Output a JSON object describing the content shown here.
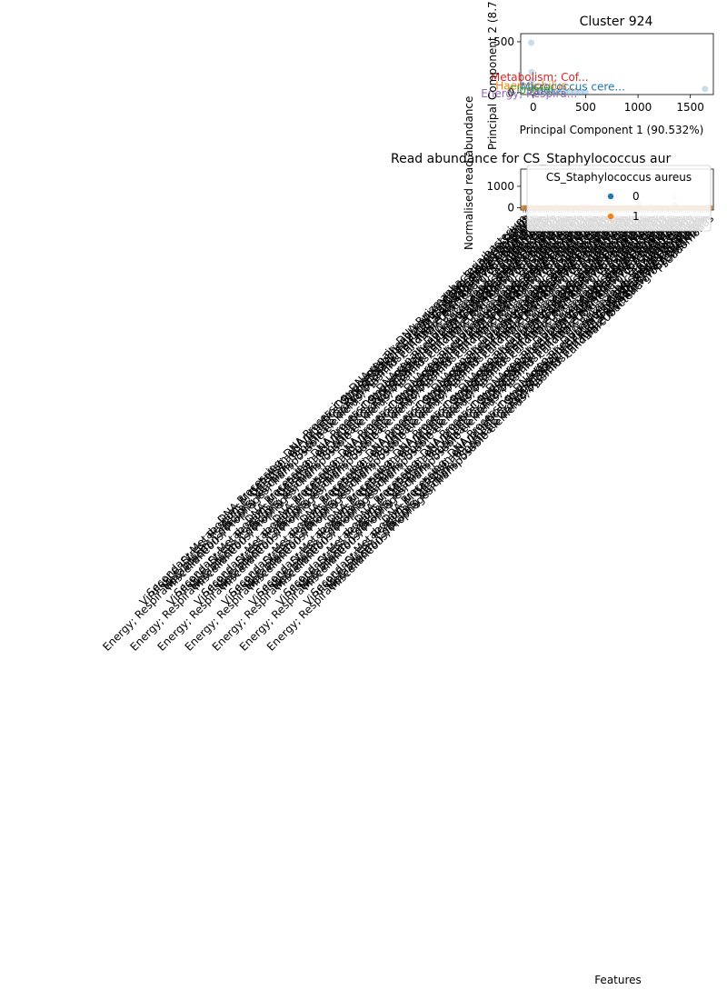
{
  "chart_data": [
    {
      "type": "scatter",
      "title": "Cluster 924",
      "xlabel": "Principal Component 1 (90.532%)",
      "ylabel": "Principal Component 2 (8.7",
      "xlim": [
        -120,
        1720
      ],
      "ylim": [
        -20,
        580
      ],
      "x_ticks": [
        "0",
        "500",
        "1000",
        "1500"
      ],
      "x_tick_values": [
        0,
        500,
        1000,
        1500
      ],
      "y_ticks": [
        "0",
        "500"
      ],
      "y_tick_values": [
        0,
        500
      ],
      "points": [
        {
          "x": -20,
          "y": 490,
          "color": "#1f77b4"
        },
        {
          "x": -15,
          "y": 200,
          "color": "#1f77b4"
        },
        {
          "x": -10,
          "y": 120,
          "color": "#1f77b4"
        },
        {
          "x": 0,
          "y": 60,
          "color": "#1f77b4"
        },
        {
          "x": 10,
          "y": 40,
          "color": "#1f77b4"
        },
        {
          "x": 40,
          "y": 25,
          "color": "#1f77b4"
        },
        {
          "x": 80,
          "y": 15,
          "color": "#1f77b4"
        },
        {
          "x": 120,
          "y": 10,
          "color": "#1f77b4"
        },
        {
          "x": 160,
          "y": 8,
          "color": "#1f77b4"
        },
        {
          "x": 200,
          "y": 6,
          "color": "#1f77b4"
        },
        {
          "x": 250,
          "y": 5,
          "color": "#1f77b4"
        },
        {
          "x": 300,
          "y": 4,
          "color": "#1f77b4"
        },
        {
          "x": 350,
          "y": 3,
          "color": "#1f77b4"
        },
        {
          "x": 400,
          "y": 3,
          "color": "#1f77b4"
        },
        {
          "x": 450,
          "y": 2,
          "color": "#1f77b4"
        },
        {
          "x": 500,
          "y": 2,
          "color": "#1f77b4"
        },
        {
          "x": 1640,
          "y": 35,
          "color": "#1f77b4"
        }
      ],
      "annotations": [
        {
          "text": "Metabolism; Cof...",
          "x": 60,
          "y": 150,
          "color": "#d62728"
        },
        {
          "text": "Haemophilus...",
          "x": 30,
          "y": 65,
          "color": "#ff7f0e"
        },
        {
          "text": "Micrococcus cere...",
          "x": 380,
          "y": 55,
          "color": "#1f77b4"
        },
        {
          "text": "Clostridi...",
          "x": 30,
          "y": 25,
          "color": "#2ca02c"
        },
        {
          "text": "Energy; Respira...",
          "x": -40,
          "y": -10,
          "color": "#9467bd"
        }
      ]
    },
    {
      "type": "scatter",
      "title": "Read abundance for CS_Staphylococcus  aur",
      "xlabel": "Features",
      "ylabel": "Normalised read abundance",
      "ylim": [
        -100,
        1800
      ],
      "y_ticks": [
        "0",
        "1000"
      ],
      "y_tick_values": [
        0,
        1000
      ],
      "legend": {
        "title": "CS_Staphylococcus  aureus",
        "entries": [
          {
            "label": "0",
            "color": "#1f77b4"
          },
          {
            "label": "1",
            "color": "#ff7f0e"
          }
        ],
        "placement": "top-right"
      },
      "feature_count": 90,
      "highlights": [
        {
          "index": 55,
          "value": 200,
          "series": "0"
        },
        {
          "index": 55,
          "value": 1650,
          "series": "1"
        },
        {
          "index": 72,
          "value": 480,
          "series": "1"
        },
        {
          "index": 72,
          "value": 150,
          "series": "0"
        },
        {
          "index": 28,
          "value": 80,
          "series": "1"
        }
      ],
      "tick_labels": [
        "DNA Processing; DNA Processing; DNA repair; DNA Rpizmanbacteria bacterium",
        "Secondary Metabolism; Metabolism of Aromatic Compounds; Phenol hydroxylase; Staphylococcus",
        "Virulence; Stress Response, Defense and Virulence; Stress Response; Universal stress protein family",
        "Vogelbacteria bacterium CG10_big_fil_rev_8_21",
        "Curtissbacteria bacterium",
        "Metabolism; Cofactors, Vitamins, Prosthetic Groups; Coenzyme F420; Coenzyme F420 synthesis",
        "Energy; Respiration; Electron donating reactions; Succinate dehydrogenase and Fumarate reductase complexes",
        "Miscellaneous; Prophages, Transposable elements, Plasmids; Phages, Prophages; P2-like phages",
        "candidate division WWE3 bacterium",
        "Parcubacteria group bacterium",
        "Clostridium",
        "Pseudomonas",
        "Janibacter"
      ]
    }
  ]
}
